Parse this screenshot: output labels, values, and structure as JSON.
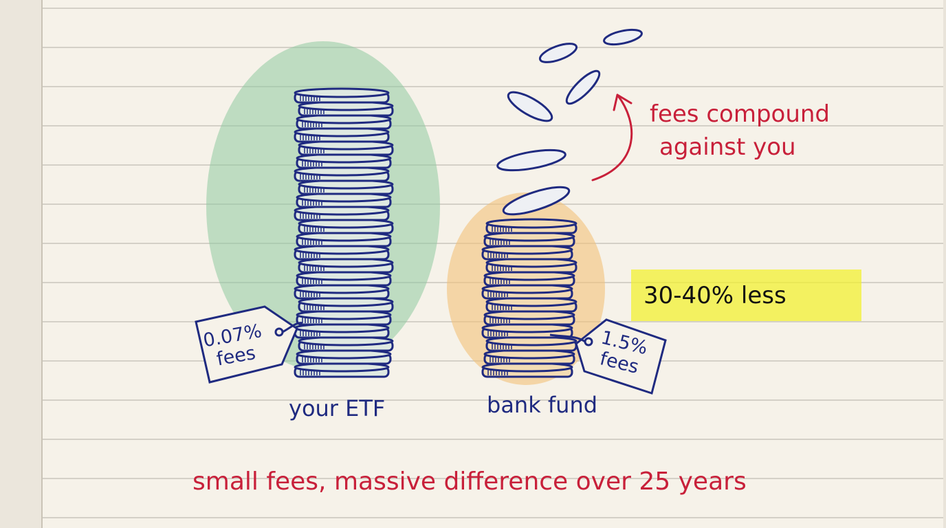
{
  "stacks": [
    {
      "label": "your ETF",
      "fee_tag": [
        "0.07%",
        "fees"
      ],
      "wash_color": "#8fcaa0",
      "coins": 22
    },
    {
      "label": "bank fund",
      "fee_tag": [
        "1.5%",
        "fees"
      ],
      "wash_color": "#f4c27a",
      "coins": 12
    }
  ],
  "annotation": [
    "fees compound",
    "against you"
  ],
  "highlight": {
    "text": "30-40% less",
    "color": "#f2f032"
  },
  "caption": "small fees, massive difference over 25 years",
  "colors": {
    "ink": "#1f2a80",
    "accent": "#c8203a",
    "paper": "#f5f1e8"
  }
}
